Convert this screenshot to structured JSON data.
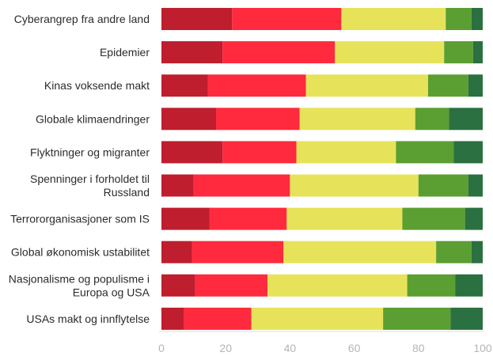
{
  "chart_data": {
    "type": "bar",
    "orientation": "horizontal",
    "stacked": true,
    "title": "",
    "xlabel": "",
    "ylabel": "",
    "xlim": [
      0,
      100
    ],
    "x_ticks": [
      "0",
      "20",
      "40",
      "60",
      "80",
      "100"
    ],
    "grid": false,
    "legend": "none",
    "categories": [
      [
        "Cyberangrep fra andre land"
      ],
      [
        "Epidemier"
      ],
      [
        "Kinas voksende makt"
      ],
      [
        "Globale klimaendringer"
      ],
      [
        "Flyktninger og migranter"
      ],
      [
        "Spenninger i forholdet til",
        "Russland"
      ],
      [
        "Terrororganisasjoner som IS"
      ],
      [
        "Global økonomisk ustabilitet"
      ],
      [
        "Nasjonalisme og populisme i",
        "Europa og USA"
      ],
      [
        "USAs makt og innflytelse"
      ]
    ],
    "series": [
      {
        "color": "#be1e2d",
        "values": [
          22,
          19,
          14.5,
          17,
          19,
          10,
          15,
          9.5,
          10.5,
          7
        ]
      },
      {
        "color": "#ff2a3d",
        "values": [
          34,
          35,
          30.5,
          26,
          23,
          30,
          24,
          28.5,
          22.5,
          21
        ]
      },
      {
        "color": "#e6e35a",
        "values": [
          32.5,
          34,
          38,
          36,
          31,
          40,
          36,
          47.5,
          43.5,
          41
        ]
      },
      {
        "color": "#5b9e32",
        "values": [
          8,
          9,
          12.5,
          10.5,
          18,
          15.5,
          19.5,
          11,
          15,
          21
        ]
      },
      {
        "color": "#2a7040",
        "values": [
          3.5,
          3,
          4.5,
          10.5,
          9,
          4.5,
          5.5,
          3.5,
          8.5,
          10
        ]
      }
    ]
  }
}
